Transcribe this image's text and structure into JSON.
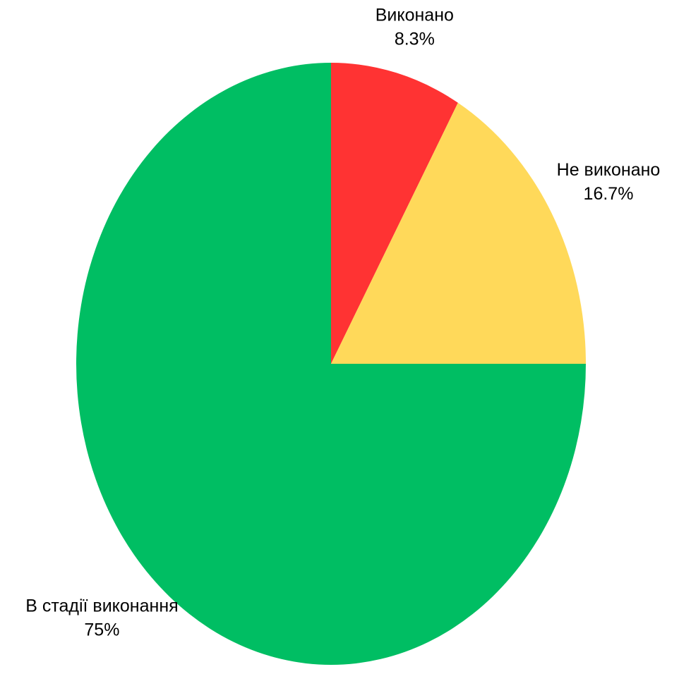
{
  "chart_data": {
    "type": "pie",
    "title": "",
    "start_angle_deg": 90,
    "direction": "clockwise",
    "slices": [
      {
        "label": "Виконано",
        "value": 8.3,
        "pct_label": "8.3%",
        "color": "#FF3333"
      },
      {
        "label": "Не виконано",
        "value": 16.7,
        "pct_label": "16.7%",
        "color": "#FFD95A"
      },
      {
        "label": "В стадії виконання",
        "value": 75,
        "pct_label": "75%",
        "color": "#00BE63"
      }
    ]
  }
}
